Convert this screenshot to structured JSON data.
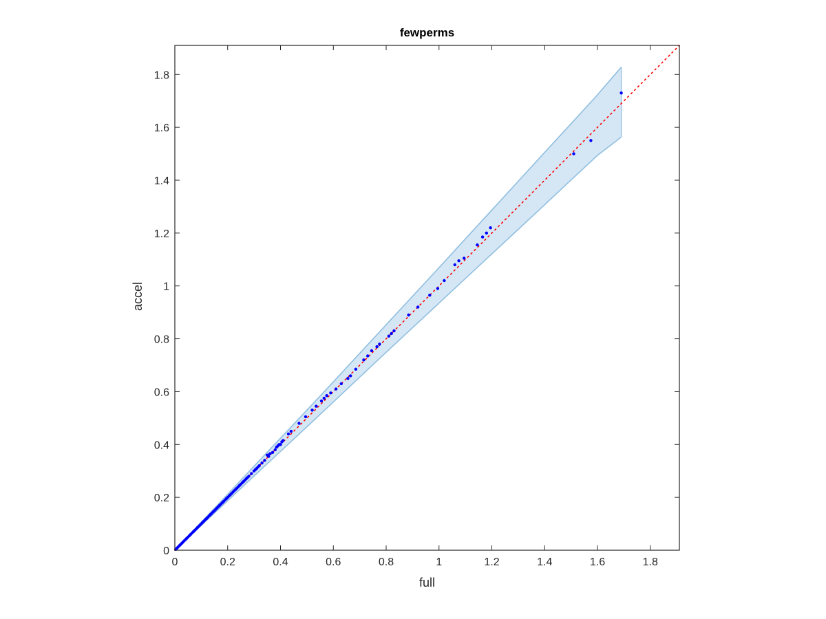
{
  "chart_data": {
    "type": "scatter",
    "title": "fewperms",
    "xlabel": "full",
    "ylabel": "accel",
    "xlim": [
      0,
      1.91
    ],
    "ylim": [
      0,
      1.91
    ],
    "xticks": [
      0,
      0.2,
      0.4,
      0.6,
      0.8,
      1,
      1.2,
      1.4,
      1.6,
      1.8
    ],
    "yticks": [
      0,
      0.2,
      0.4,
      0.6,
      0.8,
      1,
      1.2,
      1.4,
      1.6,
      1.8
    ],
    "xtick_labels": [
      "0",
      "0.2",
      "0.4",
      "0.6",
      "0.8",
      "1",
      "1.2",
      "1.4",
      "1.6",
      "1.8"
    ],
    "ytick_labels": [
      "0",
      "0.2",
      "0.4",
      "0.6",
      "0.8",
      "1",
      "1.2",
      "1.4",
      "1.6",
      "1.8"
    ],
    "grid": false,
    "legend": "none",
    "reference_line": {
      "style": "dotted",
      "color": "#ff0000",
      "from": [
        0,
        0
      ],
      "to": [
        1.91,
        1.91
      ]
    },
    "band": {
      "fill": "#d5e6f4",
      "edge": "#8fbfe0",
      "x": [
        0,
        0.1,
        0.2,
        0.3,
        0.4,
        0.5,
        0.6,
        0.7,
        0.8,
        0.9,
        1.0,
        1.1,
        1.2,
        1.3,
        1.4,
        1.5,
        1.6,
        1.69
      ],
      "upper": [
        0,
        0.106,
        0.212,
        0.318,
        0.424,
        0.53,
        0.637,
        0.745,
        0.853,
        0.961,
        1.069,
        1.178,
        1.287,
        1.396,
        1.505,
        1.614,
        1.723,
        1.828
      ],
      "lower": [
        0,
        0.094,
        0.187,
        0.281,
        0.374,
        0.467,
        0.561,
        0.655,
        0.749,
        0.842,
        0.935,
        1.028,
        1.121,
        1.214,
        1.307,
        1.401,
        1.494,
        1.563
      ]
    },
    "series": [
      {
        "color": "#0000ff",
        "x": [
          0.003,
          0.008,
          0.012,
          0.017,
          0.021,
          0.026,
          0.03,
          0.035,
          0.04,
          0.045,
          0.05,
          0.055,
          0.06,
          0.065,
          0.07,
          0.075,
          0.08,
          0.085,
          0.09,
          0.095,
          0.1,
          0.105,
          0.11,
          0.115,
          0.12,
          0.125,
          0.13,
          0.135,
          0.14,
          0.145,
          0.15,
          0.155,
          0.16,
          0.165,
          0.17,
          0.175,
          0.18,
          0.185,
          0.19,
          0.195,
          0.2,
          0.205,
          0.21,
          0.215,
          0.22,
          0.225,
          0.23,
          0.235,
          0.24,
          0.245,
          0.25,
          0.255,
          0.26,
          0.265,
          0.27,
          0.275,
          0.28,
          0.29,
          0.3,
          0.305,
          0.31,
          0.315,
          0.32,
          0.33,
          0.34,
          0.35,
          0.355,
          0.36,
          0.37,
          0.38,
          0.385,
          0.39,
          0.395,
          0.4,
          0.405,
          0.41,
          0.43,
          0.44,
          0.47,
          0.495,
          0.52,
          0.535,
          0.555,
          0.565,
          0.575,
          0.59,
          0.61,
          0.63,
          0.655,
          0.665,
          0.685,
          0.715,
          0.73,
          0.745,
          0.765,
          0.775,
          0.81,
          0.82,
          0.83,
          0.885,
          0.92,
          0.965,
          0.995,
          1.02,
          1.06,
          1.075,
          1.095,
          1.145,
          1.165,
          1.18,
          1.195,
          1.51,
          1.575,
          1.69
        ],
        "y": [
          0.003,
          0.008,
          0.012,
          0.017,
          0.021,
          0.026,
          0.03,
          0.035,
          0.04,
          0.045,
          0.05,
          0.055,
          0.06,
          0.065,
          0.07,
          0.075,
          0.08,
          0.085,
          0.09,
          0.095,
          0.1,
          0.105,
          0.11,
          0.115,
          0.12,
          0.125,
          0.13,
          0.135,
          0.14,
          0.145,
          0.15,
          0.155,
          0.16,
          0.165,
          0.17,
          0.175,
          0.18,
          0.185,
          0.19,
          0.195,
          0.2,
          0.205,
          0.21,
          0.215,
          0.22,
          0.225,
          0.23,
          0.235,
          0.24,
          0.245,
          0.25,
          0.255,
          0.26,
          0.265,
          0.27,
          0.275,
          0.28,
          0.29,
          0.3,
          0.305,
          0.31,
          0.315,
          0.32,
          0.33,
          0.34,
          0.36,
          0.355,
          0.365,
          0.37,
          0.38,
          0.39,
          0.395,
          0.4,
          0.4,
          0.41,
          0.415,
          0.44,
          0.45,
          0.48,
          0.505,
          0.53,
          0.545,
          0.565,
          0.575,
          0.585,
          0.595,
          0.61,
          0.63,
          0.65,
          0.66,
          0.685,
          0.72,
          0.735,
          0.755,
          0.77,
          0.78,
          0.81,
          0.82,
          0.83,
          0.89,
          0.92,
          0.965,
          0.99,
          1.02,
          1.08,
          1.095,
          1.105,
          1.155,
          1.185,
          1.2,
          1.22,
          1.5,
          1.55,
          1.73
        ]
      }
    ]
  }
}
